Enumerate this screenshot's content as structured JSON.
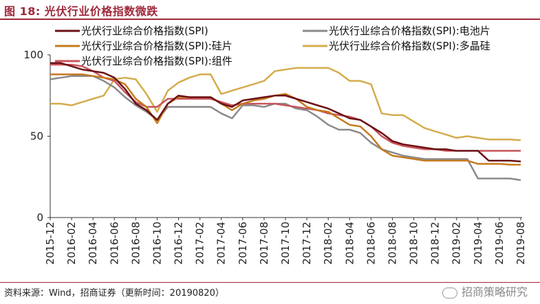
{
  "figure": {
    "title": "图 18:  光伏行业价格指数微跌",
    "source": "资料来源：Wind，招商证券（更新时间：20190820）",
    "watermark": "招商策略研究"
  },
  "chart_data": {
    "type": "line",
    "ylim": [
      0,
      100
    ],
    "yticks": [
      0,
      50,
      100
    ],
    "grid": false,
    "legend_position": "top",
    "x_ticks": [
      "2015-12",
      "2016-02",
      "2016-04",
      "2016-06",
      "2016-08",
      "2016-10",
      "2016-12",
      "2017-02",
      "2017-04",
      "2017-06",
      "2017-08",
      "2017-10",
      "2017-12",
      "2018-02",
      "2018-04",
      "2018-06",
      "2018-08",
      "2018-10",
      "2018-12",
      "2019-02",
      "2019-04",
      "2019-06",
      "2019-08"
    ],
    "x": [
      "2015-12",
      "2016-01",
      "2016-02",
      "2016-03",
      "2016-04",
      "2016-05",
      "2016-06",
      "2016-07",
      "2016-08",
      "2016-09",
      "2016-10",
      "2016-11",
      "2016-12",
      "2017-01",
      "2017-02",
      "2017-03",
      "2017-04",
      "2017-05",
      "2017-06",
      "2017-07",
      "2017-08",
      "2017-09",
      "2017-10",
      "2017-11",
      "2017-12",
      "2018-01",
      "2018-02",
      "2018-03",
      "2018-04",
      "2018-05",
      "2018-06",
      "2018-07",
      "2018-08",
      "2018-09",
      "2018-10",
      "2018-11",
      "2018-12",
      "2019-01",
      "2019-02",
      "2019-03",
      "2019-04",
      "2019-05",
      "2019-06",
      "2019-07",
      "2019-08"
    ],
    "series": [
      {
        "name": "光伏行业综合价格指数(SPI)",
        "color": "#6b0f14",
        "width": 2.5,
        "values": [
          95,
          95,
          93,
          91,
          90,
          89,
          86,
          79,
          70,
          66,
          60,
          70,
          75,
          74,
          74,
          74,
          70,
          68,
          72,
          73,
          74,
          75,
          75,
          73,
          71,
          69,
          67,
          64,
          61,
          60,
          56,
          52,
          47,
          45,
          44,
          43,
          42,
          42,
          41,
          41,
          41,
          35,
          35,
          35,
          34.5
        ]
      },
      {
        "name": "光伏行业综合价格指数(SPI):电池片",
        "color": "#8a8a8a",
        "width": 2.5,
        "values": [
          85,
          86,
          87,
          87,
          87,
          84,
          80,
          74,
          69,
          65,
          60,
          68,
          68,
          68,
          68,
          68,
          64,
          61,
          69,
          69,
          68,
          70,
          70,
          67,
          66,
          62,
          57,
          54,
          54,
          52,
          46,
          42,
          40,
          38,
          37,
          36,
          36,
          36,
          36,
          36,
          24,
          24,
          24,
          24,
          23
        ]
      },
      {
        "name": "光伏行业综合价格指数(SPI):硅片",
        "color": "#c47a1e",
        "width": 2.5,
        "values": [
          88,
          88,
          88,
          88,
          87,
          86,
          85,
          82,
          73,
          68,
          58,
          70,
          74,
          74,
          74,
          74,
          70,
          66,
          70,
          72,
          73,
          75,
          76,
          73,
          68,
          66,
          65,
          61,
          57,
          56,
          50,
          42,
          38,
          37,
          36,
          35,
          35,
          35,
          35,
          35,
          33,
          33,
          33,
          32.5,
          32.5
        ]
      },
      {
        "name": "光伏行业综合价格指数(SPI):多晶硅",
        "color": "#d4ac4c",
        "width": 2.5,
        "values": [
          70,
          70,
          69,
          71,
          73,
          75,
          85,
          86,
          85,
          76,
          65,
          78,
          83,
          86,
          88,
          88,
          76,
          78,
          80,
          82,
          84,
          90,
          91,
          92,
          92,
          92,
          92,
          89,
          84,
          84,
          82,
          64,
          63,
          63,
          59,
          55,
          53,
          51,
          49,
          50,
          49,
          48,
          48,
          48,
          47.5
        ]
      },
      {
        "name": "光伏行业综合价格指数(SPI):组件",
        "color": "#c8555c",
        "width": 2.5,
        "values": [
          94,
          94,
          94,
          93,
          90,
          86,
          84,
          77,
          71,
          68,
          68,
          73,
          73,
          73,
          73,
          73,
          71,
          69,
          70,
          70,
          70,
          70,
          69,
          68,
          67,
          66,
          64,
          63,
          62,
          60,
          56,
          50,
          46,
          44,
          43,
          42,
          42,
          41,
          41,
          41,
          41,
          41,
          41,
          41,
          41
        ]
      }
    ]
  }
}
